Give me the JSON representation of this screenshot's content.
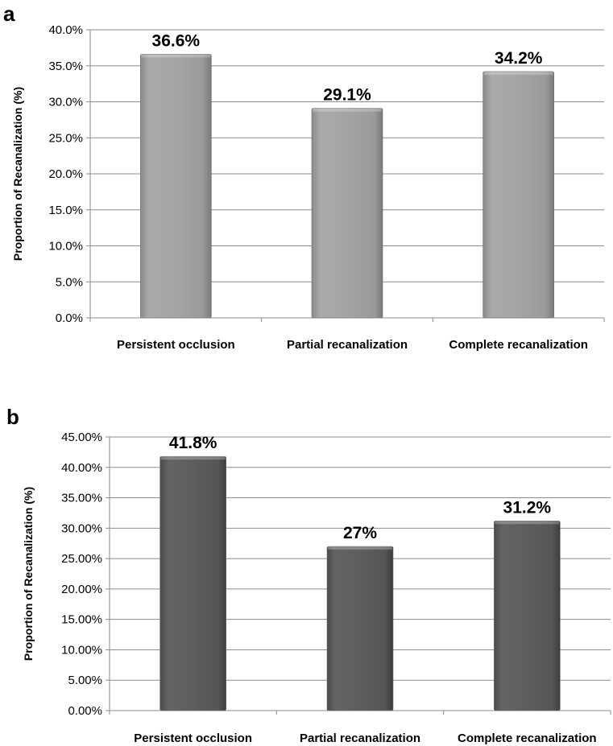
{
  "chart_data": [
    {
      "type": "bar",
      "panel": "a",
      "categories": [
        "Persistent occlusion",
        "Partial recanalization",
        "Complete recanalization"
      ],
      "values": [
        36.6,
        29.1,
        34.2
      ],
      "data_labels": [
        "36.6%",
        "29.1%",
        "34.2%"
      ],
      "ylabel": "Proportion of Recanalization (%)",
      "ylim": [
        0,
        40
      ],
      "yticks": [
        0,
        5,
        10,
        15,
        20,
        25,
        30,
        35,
        40
      ],
      "ytick_labels": [
        "0.0%",
        "5.0%",
        "10.0%",
        "15.0%",
        "20.0%",
        "25.0%",
        "30.0%",
        "35.0%",
        "40.0%"
      ],
      "bar_color": "#a6a6a6",
      "grid": true
    },
    {
      "type": "bar",
      "panel": "b",
      "categories": [
        "Persistent occlusion",
        "Partial recanalization",
        "Complete recanalization"
      ],
      "values": [
        41.8,
        27,
        31.2
      ],
      "data_labels": [
        "41.8%",
        "27%",
        "31.2%"
      ],
      "ylabel": "Proportion of Recanalization  (%)",
      "ylim": [
        0,
        45
      ],
      "yticks": [
        0,
        5,
        10,
        15,
        20,
        25,
        30,
        35,
        40,
        45
      ],
      "ytick_labels": [
        "0.00%",
        "5.00%",
        "10.00%",
        "15.00%",
        "20.00%",
        "25.00%",
        "30.00%",
        "35.00%",
        "40.00%",
        "45.00%"
      ],
      "bar_color": "#5f5f5f",
      "grid": true
    }
  ]
}
